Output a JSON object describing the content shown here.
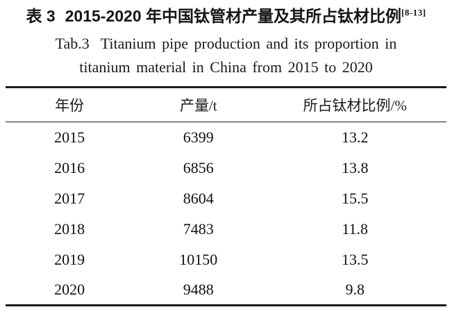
{
  "page": {
    "background": "#ffffff",
    "text_color": "#1a1a1a",
    "rule_color": "#1c1c1c"
  },
  "title": {
    "zh_label": "表 3",
    "zh_text": "2015-2020 年中国钛管材产量及其所占钛材比例",
    "zh_ref": "[8-13]",
    "en_label": "Tab.3",
    "en_line1_rest": "Titanium pipe production and its proportion in",
    "en_line2": "titanium material in China from 2015 to 2020"
  },
  "table": {
    "columns": [
      "年份",
      "产量/t",
      "所占钛材比例/%"
    ],
    "rows": [
      {
        "year": "2015",
        "production": "6399",
        "proportion": "13.2"
      },
      {
        "year": "2016",
        "production": "6856",
        "proportion": "13.8"
      },
      {
        "year": "2017",
        "production": "8604",
        "proportion": "15.5"
      },
      {
        "year": "2018",
        "production": "7483",
        "proportion": "11.8"
      },
      {
        "year": "2019",
        "production": "10150",
        "proportion": "13.5"
      },
      {
        "year": "2020",
        "production": "9488",
        "proportion": "9.8"
      }
    ]
  }
}
